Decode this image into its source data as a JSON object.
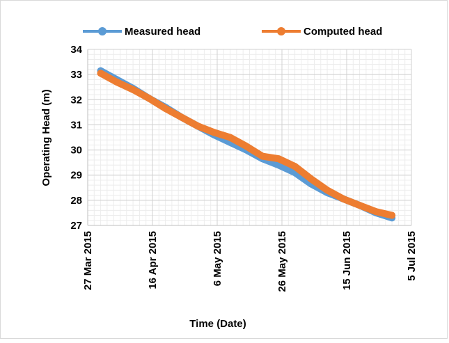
{
  "chart_data": {
    "type": "line",
    "title": "",
    "xlabel": "Time (Date)",
    "ylabel": "Operating Head (m)",
    "xlim": [
      "2015-03-27",
      "2015-07-05"
    ],
    "ylim": [
      27,
      34
    ],
    "x_ticks": [
      "27 Mar 2015",
      "16 Apr 2015",
      "6 May 2015",
      "26 May 2015",
      "15 Jun 2015",
      "5 Jul 2015"
    ],
    "y_ticks": [
      27,
      28,
      29,
      30,
      31,
      32,
      33,
      34
    ],
    "grid": true,
    "legend_position": "top",
    "series": [
      {
        "name": "Measured head",
        "color": "#5B9BD5",
        "x": [
          "2015-03-31",
          "2015-04-05",
          "2015-04-10",
          "2015-04-15",
          "2015-04-20",
          "2015-04-25",
          "2015-04-30",
          "2015-05-05",
          "2015-05-10",
          "2015-05-15",
          "2015-05-20",
          "2015-05-25",
          "2015-05-30",
          "2015-06-04",
          "2015-06-09",
          "2015-06-14",
          "2015-06-19",
          "2015-06-24",
          "2015-06-29"
        ],
        "y": [
          33.15,
          32.8,
          32.45,
          32.05,
          31.7,
          31.3,
          30.95,
          30.6,
          30.3,
          30.0,
          29.65,
          29.4,
          29.1,
          28.65,
          28.3,
          28.05,
          27.8,
          27.5,
          27.3
        ]
      },
      {
        "name": "Computed head",
        "color": "#ED7D31",
        "x": [
          "2015-03-31",
          "2015-04-05",
          "2015-04-10",
          "2015-04-15",
          "2015-04-20",
          "2015-04-25",
          "2015-04-30",
          "2015-05-05",
          "2015-05-10",
          "2015-05-15",
          "2015-05-20",
          "2015-05-25",
          "2015-05-30",
          "2015-06-04",
          "2015-06-09",
          "2015-06-14",
          "2015-06-19",
          "2015-06-24",
          "2015-06-29"
        ],
        "y": [
          33.05,
          32.7,
          32.4,
          32.05,
          31.65,
          31.3,
          30.95,
          30.7,
          30.5,
          30.15,
          29.75,
          29.65,
          29.35,
          28.85,
          28.4,
          28.05,
          27.8,
          27.55,
          27.4
        ]
      }
    ]
  }
}
